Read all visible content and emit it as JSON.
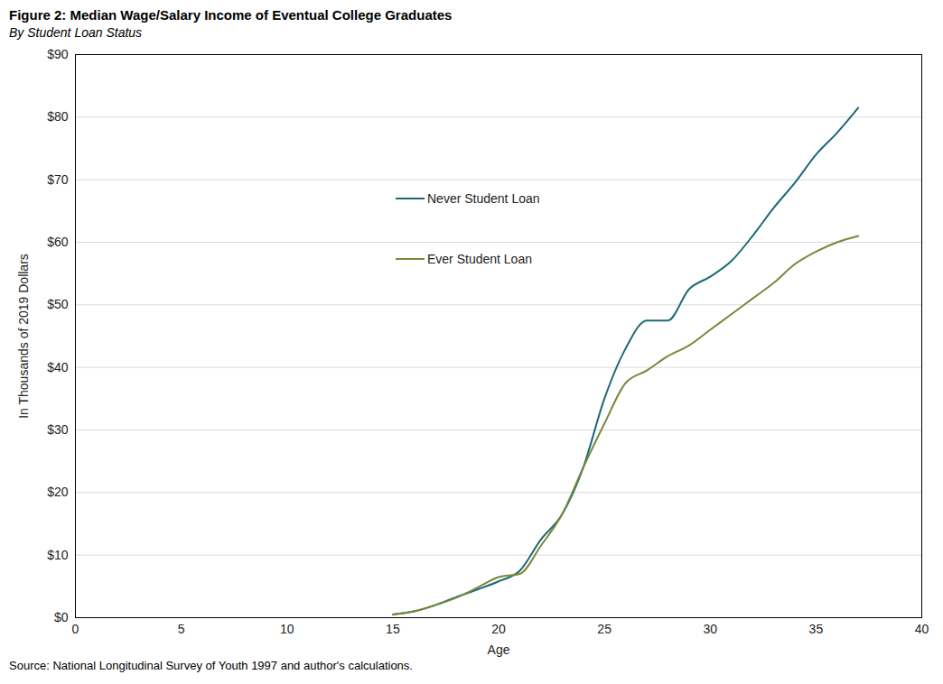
{
  "chart_data": {
    "type": "line",
    "title": "Figure 2: Median Wage/Salary Income of Eventual College Graduates",
    "subtitle": "By Student Loan Status",
    "y_label": "In Thousands of 2019 Dollars",
    "x_label": "Age",
    "source": "Source: National Longitudinal Survey of Youth 1997 and author's calculations.",
    "x": [
      15,
      16,
      17,
      18,
      19,
      20,
      21,
      22,
      23,
      24,
      25,
      26,
      27,
      28,
      29,
      30,
      31,
      32,
      33,
      34,
      35,
      36,
      37
    ],
    "series": [
      {
        "name": "Never Student Loan",
        "color": "#1b6a74",
        "values": [
          0.5,
          1,
          2,
          3.3,
          4.5,
          5.8,
          7.5,
          12.5,
          16.5,
          24,
          35,
          43,
          47.5,
          47.5,
          52.5,
          54.5,
          57,
          61,
          65.5,
          69.5,
          74,
          77.5,
          81.5
        ]
      },
      {
        "name": "Ever Student Loan",
        "color": "#77893a",
        "values": [
          0.5,
          1,
          2,
          3.2,
          4.8,
          6.5,
          7,
          11.5,
          16.5,
          24,
          31,
          37.5,
          39.5,
          41.8,
          43.5,
          46,
          48.5,
          51,
          53.5,
          56.5,
          58.5,
          60,
          61
        ]
      }
    ],
    "xlim": [
      0,
      40
    ],
    "xticks": [
      0,
      5,
      10,
      15,
      20,
      25,
      30,
      35,
      40
    ],
    "ylim": [
      0,
      90
    ],
    "yticks": [
      {
        "value": 0,
        "label": "$0"
      },
      {
        "value": 10,
        "label": "$10"
      },
      {
        "value": 20,
        "label": "$20"
      },
      {
        "value": 30,
        "label": "$30"
      },
      {
        "value": 40,
        "label": "$40"
      },
      {
        "value": 50,
        "label": "$50"
      },
      {
        "value": 60,
        "label": "$60"
      },
      {
        "value": 70,
        "label": "$70"
      },
      {
        "value": 80,
        "label": "$80"
      },
      {
        "value": 90,
        "label": "$90"
      }
    ],
    "grid": true,
    "legend": "center"
  }
}
